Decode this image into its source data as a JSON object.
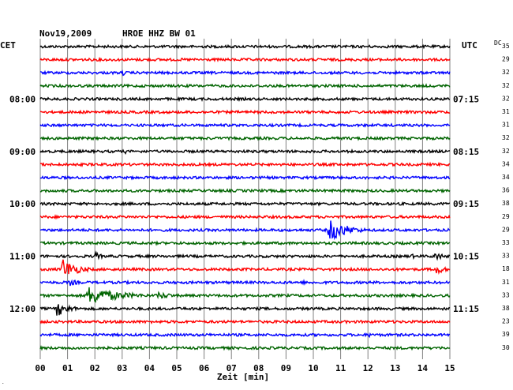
{
  "header": {
    "date": "Nov19,2009",
    "station": "HROE HHZ BW 01",
    "left_tz": "CET",
    "right_tz": "UTC",
    "dc_header": "DC"
  },
  "chart_data": {
    "type": "line",
    "title": "Nov19,2009   HROE HHZ BW 01",
    "xlabel": "Zeit [min]",
    "xlim": [
      0,
      15
    ],
    "x_ticks": [
      "00",
      "01",
      "02",
      "03",
      "04",
      "05",
      "06",
      "07",
      "08",
      "09",
      "10",
      "11",
      "12",
      "13",
      "14",
      "15"
    ],
    "grid": true,
    "colors": [
      "#000000",
      "#ff0000",
      "#0000ff",
      "#006400"
    ],
    "left_labels": [
      "",
      "",
      "",
      "",
      "08:00",
      "",
      "",
      "",
      "09:00",
      "",
      "",
      "",
      "10:00",
      "",
      "",
      "",
      "11:00",
      "",
      "",
      "",
      "12:00",
      "",
      "",
      ""
    ],
    "right_labels": [
      "",
      "",
      "",
      "",
      "07:15",
      "",
      "",
      "",
      "08:15",
      "",
      "",
      "",
      "09:15",
      "",
      "",
      "",
      "10:15",
      "",
      "",
      "",
      "11:15",
      "",
      "",
      ""
    ],
    "dc_values": [
      "35",
      "29",
      "32",
      "32",
      "32",
      "31",
      "31",
      "32",
      "32",
      "34",
      "34",
      "36",
      "38",
      "29",
      "29",
      "33",
      "33",
      "18",
      "31",
      "33",
      "38",
      "23",
      "39",
      "30"
    ],
    "events": [
      {
        "row": 2,
        "minute": 3.0,
        "amplitude": 4,
        "duration": 0.5
      },
      {
        "row": 8,
        "minute": 3.1,
        "amplitude": 3,
        "duration": 0.4
      },
      {
        "row": 8,
        "minute": 7.1,
        "amplitude": 3,
        "duration": 0.4
      },
      {
        "row": 14,
        "minute": 10.55,
        "amplitude": 16,
        "duration": 1.6
      },
      {
        "row": 16,
        "minute": 2.0,
        "amplitude": 6,
        "duration": 0.6
      },
      {
        "row": 16,
        "minute": 13.5,
        "amplitude": 4,
        "duration": 0.8
      },
      {
        "row": 16,
        "minute": 14.45,
        "amplitude": 6,
        "duration": 0.8
      },
      {
        "row": 17,
        "minute": 0.75,
        "amplitude": 16,
        "duration": 1.3
      },
      {
        "row": 17,
        "minute": 14.5,
        "amplitude": 7,
        "duration": 0.8
      },
      {
        "row": 18,
        "minute": 1.05,
        "amplitude": 5,
        "duration": 0.9
      },
      {
        "row": 18,
        "minute": 9.6,
        "amplitude": 3,
        "duration": 0.5
      },
      {
        "row": 19,
        "minute": 1.75,
        "amplitude": 12,
        "duration": 2.8
      },
      {
        "row": 19,
        "minute": 4.3,
        "amplitude": 5,
        "duration": 1.5
      },
      {
        "row": 20,
        "minute": 0.6,
        "amplitude": 10,
        "duration": 1.2
      },
      {
        "row": 22,
        "minute": 12.0,
        "amplitude": 4,
        "duration": 0.6
      }
    ]
  }
}
